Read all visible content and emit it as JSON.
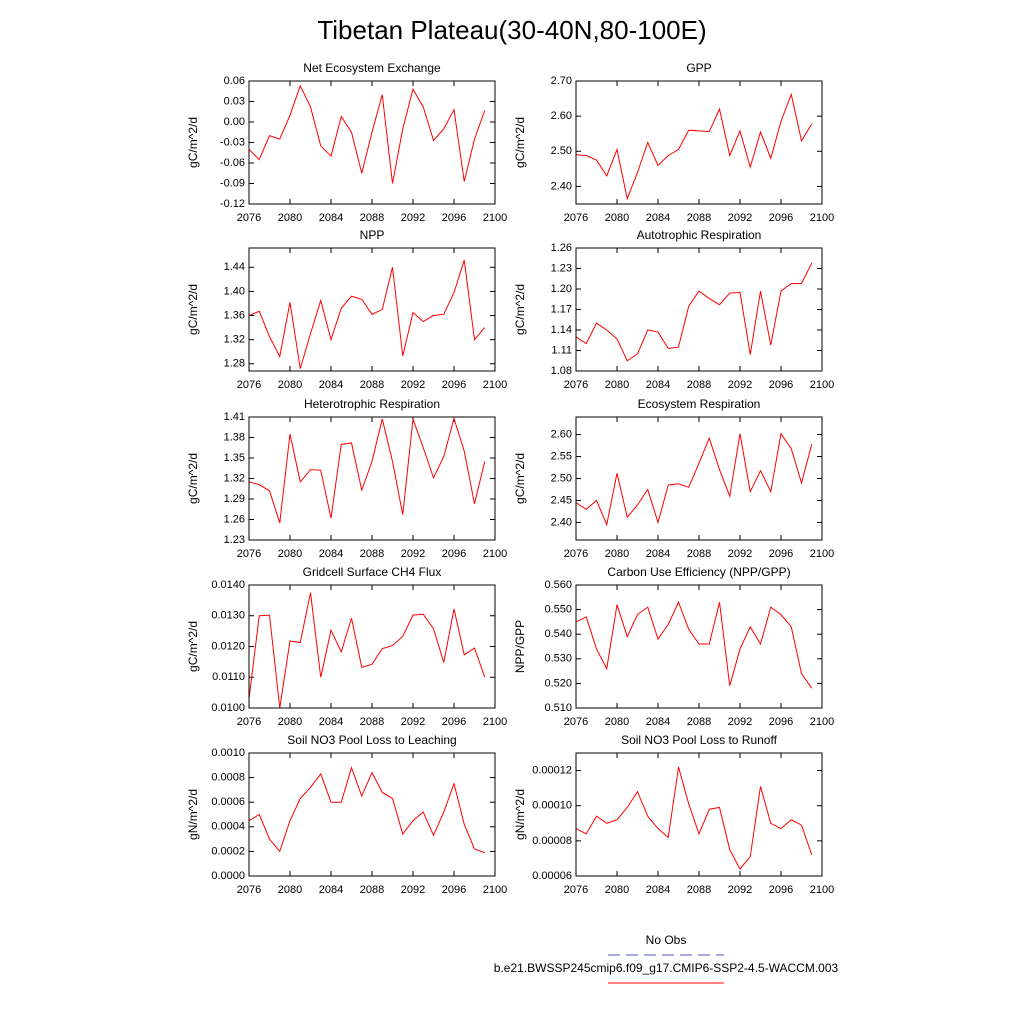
{
  "title": "Tibetan Plateau(30-40N,80-100E)",
  "legend": [
    {
      "name": "No Obs",
      "color": "#5555cc",
      "dashed": true
    },
    {
      "name": "b.e21.BWSSP245cmip6.f09_g17.CMIP6-SSP2-4.5-WACCM.003",
      "color": "#ff0000",
      "dashed": false
    }
  ],
  "chart_data": [
    {
      "type": "line",
      "title": "Net Ecosystem Exchange",
      "y_label": "gC/m^2/d",
      "color": "#ff0000",
      "x": [
        2076,
        2077,
        2078,
        2079,
        2080,
        2081,
        2082,
        2083,
        2084,
        2085,
        2086,
        2087,
        2088,
        2089,
        2090,
        2091,
        2092,
        2093,
        2094,
        2095,
        2096,
        2097,
        2098,
        2099
      ],
      "values": [
        -0.04,
        -0.055,
        -0.02,
        -0.025,
        0.01,
        0.053,
        0.022,
        -0.035,
        -0.05,
        0.008,
        -0.015,
        -0.075,
        -0.015,
        0.04,
        -0.09,
        -0.01,
        0.048,
        0.022,
        -0.027,
        -0.01,
        0.018,
        -0.087,
        -0.025,
        0.017
      ],
      "xlim": [
        2076,
        2100
      ],
      "xticks": [
        2076,
        2080,
        2084,
        2088,
        2092,
        2096,
        2100
      ],
      "ylim": [
        -0.12,
        0.06
      ],
      "yticks": [
        0.06,
        0.03,
        {
          "value": 0,
          "label": "0.00"
        },
        -0.03,
        -0.06,
        -0.09,
        -0.12
      ]
    },
    {
      "type": "line",
      "title": "GPP",
      "y_label": "gC/m^2/d",
      "color": "#ff0000",
      "x": [
        2076,
        2077,
        2078,
        2079,
        2080,
        2081,
        2082,
        2083,
        2084,
        2085,
        2086,
        2087,
        2088,
        2089,
        2090,
        2091,
        2092,
        2093,
        2094,
        2095,
        2096,
        2097,
        2098,
        2099
      ],
      "values": [
        2.49,
        2.488,
        2.475,
        2.43,
        2.505,
        2.365,
        2.44,
        2.525,
        2.46,
        2.488,
        2.505,
        2.56,
        2.558,
        2.556,
        2.62,
        2.488,
        2.558,
        2.455,
        2.555,
        2.48,
        2.585,
        2.662,
        2.53,
        2.578
      ],
      "xlim": [
        2076,
        2100
      ],
      "xticks": [
        2076,
        2080,
        2084,
        2088,
        2092,
        2096,
        2100
      ],
      "ylim": [
        2.35,
        2.7
      ],
      "yticks": [
        {
          "value": 2.7,
          "label": "2.70"
        },
        {
          "value": 2.6,
          "label": "2.60"
        },
        {
          "value": 2.5,
          "label": "2.50"
        },
        {
          "value": 2.4,
          "label": "2.40"
        }
      ]
    },
    {
      "type": "line",
      "title": "NPP",
      "y_label": "gC/m^2/d",
      "color": "#ff0000",
      "x": [
        2076,
        2077,
        2078,
        2079,
        2080,
        2081,
        2082,
        2083,
        2084,
        2085,
        2086,
        2087,
        2088,
        2089,
        2090,
        2091,
        2092,
        2093,
        2094,
        2095,
        2096,
        2097,
        2098,
        2099
      ],
      "values": [
        1.36,
        1.367,
        1.325,
        1.292,
        1.382,
        1.272,
        1.33,
        1.385,
        1.32,
        1.372,
        1.392,
        1.387,
        1.362,
        1.37,
        1.44,
        1.293,
        1.365,
        1.35,
        1.36,
        1.362,
        1.398,
        1.452,
        1.32,
        1.34
      ],
      "xlim": [
        2076,
        2100
      ],
      "xticks": [
        2076,
        2080,
        2084,
        2088,
        2092,
        2096,
        2100
      ],
      "ylim": [
        1.268,
        1.472
      ],
      "yticks": [
        1.44,
        {
          "value": 1.4,
          "label": "1.40"
        },
        1.36,
        1.32,
        1.28
      ]
    },
    {
      "type": "line",
      "title": "Autotrophic Respiration",
      "y_label": "gC/m^2/d",
      "color": "#ff0000",
      "x": [
        2076,
        2077,
        2078,
        2079,
        2080,
        2081,
        2082,
        2083,
        2084,
        2085,
        2086,
        2087,
        2088,
        2089,
        2090,
        2091,
        2092,
        2093,
        2094,
        2095,
        2096,
        2097,
        2098,
        2099
      ],
      "values": [
        1.13,
        1.12,
        1.15,
        1.14,
        1.127,
        1.095,
        1.105,
        1.14,
        1.137,
        1.113,
        1.115,
        1.175,
        1.197,
        1.186,
        1.177,
        1.194,
        1.195,
        1.104,
        1.197,
        1.118,
        1.197,
        1.208,
        1.208,
        1.238
      ],
      "xlim": [
        2076,
        2100
      ],
      "xticks": [
        2076,
        2080,
        2084,
        2088,
        2092,
        2096,
        2100
      ],
      "ylim": [
        1.08,
        1.26
      ],
      "yticks": [
        1.26,
        1.23,
        {
          "value": 1.2,
          "label": "1.20"
        },
        1.17,
        1.14,
        1.11,
        1.08
      ]
    },
    {
      "type": "line",
      "title": "Heterotrophic Respiration",
      "y_label": "gC/m^2/d",
      "color": "#ff0000",
      "x": [
        2076,
        2077,
        2078,
        2079,
        2080,
        2081,
        2082,
        2083,
        2084,
        2085,
        2086,
        2087,
        2088,
        2089,
        2090,
        2091,
        2092,
        2093,
        2094,
        2095,
        2096,
        2097,
        2098,
        2099
      ],
      "values": [
        1.315,
        1.311,
        1.302,
        1.255,
        1.385,
        1.315,
        1.333,
        1.332,
        1.262,
        1.37,
        1.372,
        1.303,
        1.345,
        1.407,
        1.345,
        1.267,
        1.407,
        1.365,
        1.321,
        1.352,
        1.408,
        1.36,
        1.283,
        1.345
      ],
      "xlim": [
        2076,
        2100
      ],
      "xticks": [
        2076,
        2080,
        2084,
        2088,
        2092,
        2096,
        2100
      ],
      "ylim": [
        1.23,
        1.41
      ],
      "yticks": [
        1.41,
        1.38,
        1.35,
        1.32,
        1.29,
        1.26,
        1.23
      ]
    },
    {
      "type": "line",
      "title": "Ecosystem Respiration",
      "y_label": "gC/m^2/d",
      "color": "#ff0000",
      "x": [
        2076,
        2077,
        2078,
        2079,
        2080,
        2081,
        2082,
        2083,
        2084,
        2085,
        2086,
        2087,
        2088,
        2089,
        2090,
        2091,
        2092,
        2093,
        2094,
        2095,
        2096,
        2097,
        2098,
        2099
      ],
      "values": [
        2.445,
        2.43,
        2.45,
        2.395,
        2.512,
        2.412,
        2.44,
        2.475,
        2.4,
        2.485,
        2.488,
        2.48,
        2.535,
        2.592,
        2.52,
        2.46,
        2.602,
        2.47,
        2.518,
        2.47,
        2.602,
        2.568,
        2.49,
        2.578
      ],
      "xlim": [
        2076,
        2100
      ],
      "xticks": [
        2076,
        2080,
        2084,
        2088,
        2092,
        2096,
        2100
      ],
      "ylim": [
        2.36,
        2.64
      ],
      "yticks": [
        {
          "value": 2.6,
          "label": "2.60"
        },
        2.55,
        {
          "value": 2.5,
          "label": "2.50"
        },
        2.45,
        {
          "value": 2.4,
          "label": "2.40"
        }
      ]
    },
    {
      "type": "line",
      "title": "Gridcell Surface CH4 Flux",
      "y_label": "gC/m^2/d",
      "color": "#ff0000",
      "x": [
        2076,
        2077,
        2078,
        2079,
        2080,
        2081,
        2082,
        2083,
        2084,
        2085,
        2086,
        2087,
        2088,
        2089,
        2090,
        2091,
        2092,
        2093,
        2094,
        2095,
        2096,
        2097,
        2098,
        2099
      ],
      "values": [
        0.0103,
        0.013,
        0.01302,
        0.01,
        0.01218,
        0.01213,
        0.01375,
        0.011,
        0.01253,
        0.01183,
        0.01292,
        0.01132,
        0.01142,
        0.01193,
        0.01203,
        0.01233,
        0.01302,
        0.01305,
        0.01258,
        0.01148,
        0.01322,
        0.01173,
        0.01195,
        0.011
      ],
      "xlim": [
        2076,
        2100
      ],
      "xticks": [
        2076,
        2080,
        2084,
        2088,
        2092,
        2096,
        2100
      ],
      "ylim": [
        0.01,
        0.014
      ],
      "yticks": [
        {
          "value": 0.014,
          "label": "0.0140"
        },
        {
          "value": 0.013,
          "label": "0.0130"
        },
        {
          "value": 0.012,
          "label": "0.0120"
        },
        {
          "value": 0.011,
          "label": "0.0110"
        },
        {
          "value": 0.01,
          "label": "0.0100"
        }
      ]
    },
    {
      "type": "line",
      "title": "Carbon Use Efficiency (NPP/GPP)",
      "y_label": "NPP/GPP",
      "color": "#ff0000",
      "x": [
        2076,
        2077,
        2078,
        2079,
        2080,
        2081,
        2082,
        2083,
        2084,
        2085,
        2086,
        2087,
        2088,
        2089,
        2090,
        2091,
        2092,
        2093,
        2094,
        2095,
        2096,
        2097,
        2098,
        2099
      ],
      "values": [
        0.545,
        0.547,
        0.534,
        0.526,
        0.552,
        0.539,
        0.548,
        0.551,
        0.538,
        0.544,
        0.553,
        0.542,
        0.536,
        0.536,
        0.553,
        0.519,
        0.534,
        0.543,
        0.536,
        0.551,
        0.548,
        0.543,
        0.524,
        0.518
      ],
      "xlim": [
        2076,
        2100
      ],
      "xticks": [
        2076,
        2080,
        2084,
        2088,
        2092,
        2096,
        2100
      ],
      "ylim": [
        0.51,
        0.56
      ],
      "yticks": [
        {
          "value": 0.56,
          "label": "0.560"
        },
        {
          "value": 0.55,
          "label": "0.550"
        },
        {
          "value": 0.54,
          "label": "0.540"
        },
        {
          "value": 0.53,
          "label": "0.530"
        },
        {
          "value": 0.52,
          "label": "0.520"
        },
        {
          "value": 0.51,
          "label": "0.510"
        }
      ]
    },
    {
      "type": "line",
      "title": "Soil NO3 Pool Loss to Leaching",
      "y_label": "gN/m^2/d",
      "color": "#ff0000",
      "x": [
        2076,
        2077,
        2078,
        2079,
        2080,
        2081,
        2082,
        2083,
        2084,
        2085,
        2086,
        2087,
        2088,
        2089,
        2090,
        2091,
        2092,
        2093,
        2094,
        2095,
        2096,
        2097,
        2098,
        2099
      ],
      "values": [
        0.00045,
        0.0005,
        0.0003,
        0.0002,
        0.00045,
        0.00063,
        0.00072,
        0.00083,
        0.0006,
        0.0006,
        0.00088,
        0.00065,
        0.00084,
        0.00068,
        0.00063,
        0.00034,
        0.00045,
        0.00052,
        0.00033,
        0.00052,
        0.00075,
        0.00042,
        0.00022,
        0.00019
      ],
      "xlim": [
        2076,
        2100
      ],
      "xticks": [
        2076,
        2080,
        2084,
        2088,
        2092,
        2096,
        2100
      ],
      "ylim": [
        0,
        0.001
      ],
      "yticks": [
        {
          "value": 0.001,
          "label": "0.0010"
        },
        0.0008,
        0.0006,
        0.0004,
        0.0002,
        {
          "value": 0,
          "label": "0.0000"
        }
      ]
    },
    {
      "type": "line",
      "title": "Soil NO3 Pool Loss to Runoff",
      "y_label": "gN/m^2/d",
      "color": "#ff0000",
      "x": [
        2076,
        2077,
        2078,
        2079,
        2080,
        2081,
        2082,
        2083,
        2084,
        2085,
        2086,
        2087,
        2088,
        2089,
        2090,
        2091,
        2092,
        2093,
        2094,
        2095,
        2096,
        2097,
        2098,
        2099
      ],
      "values": [
        8.7e-05,
        8.4e-05,
        9.4e-05,
        9e-05,
        9.2e-05,
        9.9e-05,
        0.000108,
        9.4e-05,
        8.7e-05,
        8.2e-05,
        0.000122,
        0.000101,
        8.4e-05,
        9.8e-05,
        9.9e-05,
        7.5e-05,
        6.4e-05,
        7.1e-05,
        0.000111,
        9e-05,
        8.7e-05,
        9.2e-05,
        8.9e-05,
        7.2e-05
      ],
      "xlim": [
        2076,
        2100
      ],
      "xticks": [
        2076,
        2080,
        2084,
        2088,
        2092,
        2096,
        2100
      ],
      "ylim": [
        6e-05,
        0.00013
      ],
      "yticks": [
        0.00012,
        {
          "value": 0.0001,
          "label": "0.00010"
        },
        8e-05,
        6e-05
      ]
    }
  ]
}
